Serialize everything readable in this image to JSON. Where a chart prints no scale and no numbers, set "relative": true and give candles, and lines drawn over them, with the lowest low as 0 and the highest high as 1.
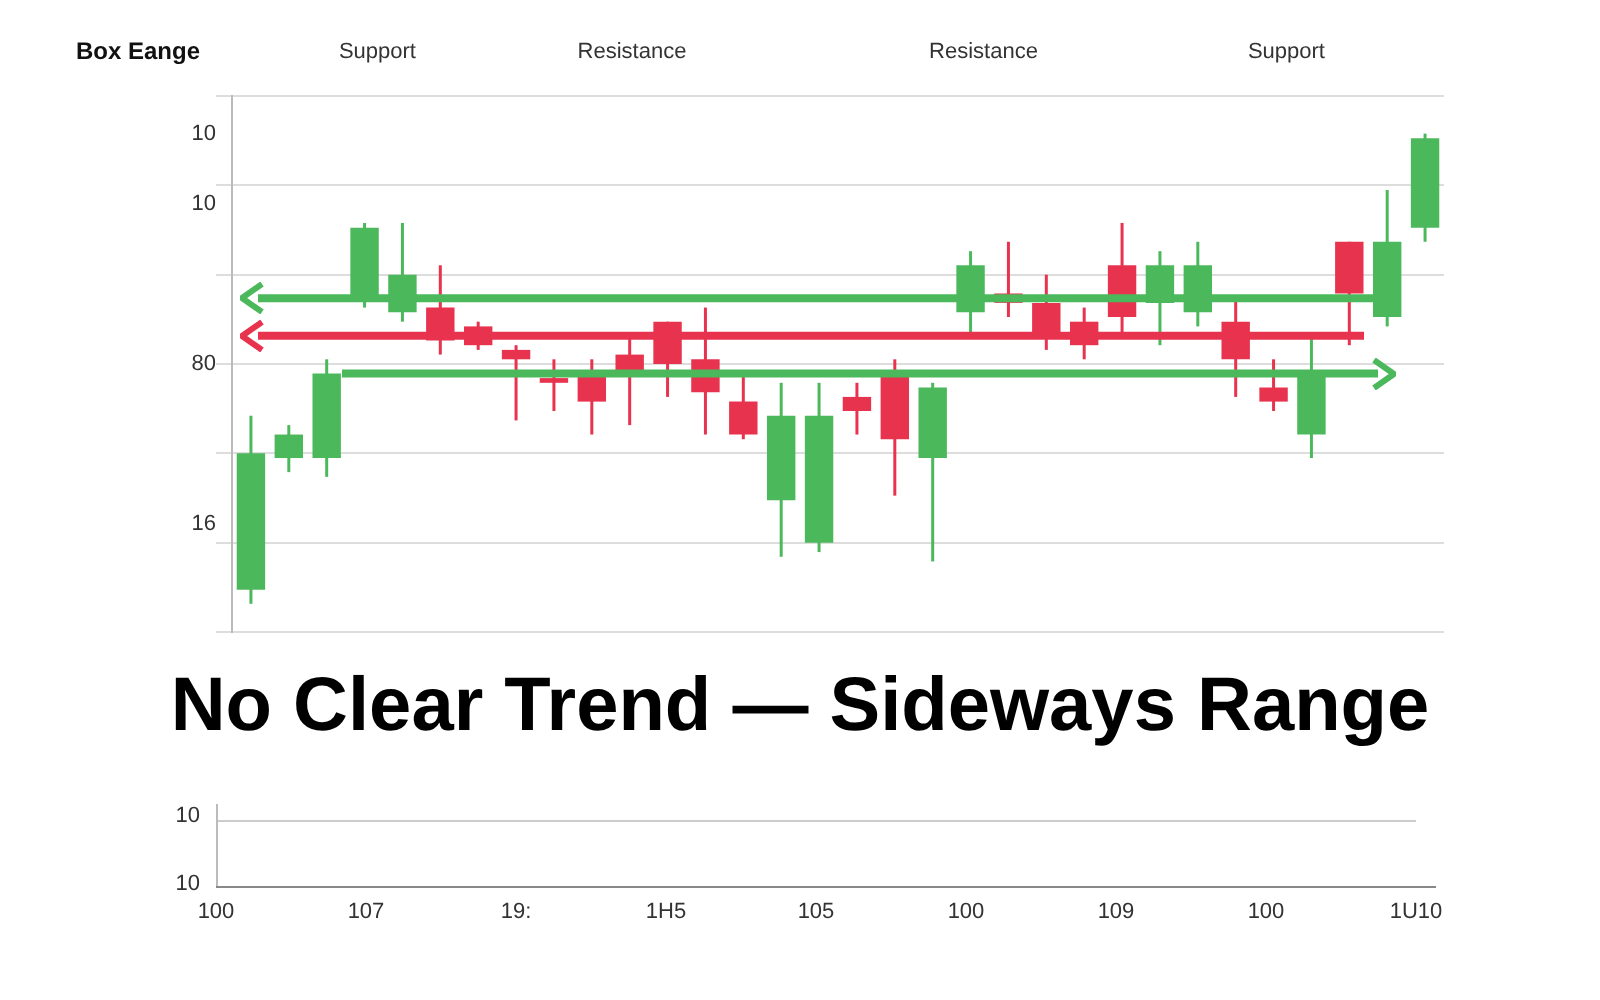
{
  "chart_data": [
    {
      "type": "candlestick",
      "relative": true,
      "ylabel": "Box Eange",
      "grid": "y",
      "colors": [
        "#4cb85c",
        "#4cb85c",
        "#4cb85c",
        "#4cb85c",
        "#4cb85c",
        "#e8334f",
        "#e8334f",
        "#e8334f",
        "#e8334f",
        "#e8334f",
        "#e8334f",
        "#e8334f",
        "#e8334f",
        "#e8334f",
        "#4cb85c",
        "#4cb85c",
        "#e8334f",
        "#e8334f",
        "#4cb85c",
        "#4cb85c",
        "#e8334f",
        "#e8334f",
        "#e8334f",
        "#e8334f",
        "#4cb85c",
        "#4cb85c",
        "#e8334f",
        "#e8334f",
        "#4cb85c",
        "#e8334f",
        "#4cb85c",
        "#4cb85c"
      ],
      "annotations": [
        "Support",
        "Resistance",
        "Resistance",
        "Support",
        "10",
        "10",
        "80",
        "16"
      ],
      "categories": [
        null,
        null,
        null,
        null,
        null,
        null,
        null,
        null,
        null,
        null,
        null,
        null,
        null,
        null,
        null,
        null,
        null,
        null,
        null,
        null,
        null,
        null,
        null,
        null,
        null,
        null,
        null,
        null,
        null,
        null,
        null,
        null
      ],
      "ohlc": [
        [
          0.03,
          0.4,
          0,
          0.32
        ],
        [
          0.31,
          0.38,
          0.28,
          0.36
        ],
        [
          0.31,
          0.52,
          0.27,
          0.49
        ],
        [
          0.65,
          0.81,
          0.63,
          0.8
        ],
        [
          0.62,
          0.81,
          0.6,
          0.7
        ],
        [
          0.63,
          0.72,
          0.53,
          0.56
        ],
        [
          0.59,
          0.6,
          0.54,
          0.55
        ],
        [
          0.54,
          0.55,
          0.39,
          0.52
        ],
        [
          0.48,
          0.52,
          0.41,
          0.47
        ],
        [
          0.49,
          0.52,
          0.36,
          0.43
        ],
        [
          0.53,
          0.57,
          0.38,
          0.49
        ],
        [
          0.6,
          0.6,
          0.44,
          0.51
        ],
        [
          0.52,
          0.63,
          0.36,
          0.45
        ],
        [
          0.43,
          0.49,
          0.35,
          0.36
        ],
        [
          0.22,
          0.47,
          0.1,
          0.4
        ],
        [
          0.13,
          0.47,
          0.11,
          0.4
        ],
        [
          0.44,
          0.47,
          0.36,
          0.41
        ],
        [
          0.49,
          0.52,
          0.23,
          0.35
        ],
        [
          0.31,
          0.47,
          0.09,
          0.46
        ],
        [
          0.62,
          0.75,
          0.57,
          0.72
        ],
        [
          0.66,
          0.77,
          0.61,
          0.64
        ],
        [
          0.64,
          0.7,
          0.54,
          0.57
        ],
        [
          0.6,
          0.63,
          0.52,
          0.55
        ],
        [
          0.72,
          0.81,
          0.57,
          0.61
        ],
        [
          0.64,
          0.75,
          0.55,
          0.72
        ],
        [
          0.62,
          0.77,
          0.59,
          0.72
        ],
        [
          0.6,
          0.65,
          0.44,
          0.52
        ],
        [
          0.46,
          0.52,
          0.41,
          0.43
        ],
        [
          0.36,
          0.57,
          0.31,
          0.49
        ],
        [
          0.77,
          0.77,
          0.55,
          0.66
        ],
        [
          0.61,
          0.88,
          0.59,
          0.77
        ],
        [
          0.8,
          1.0,
          0.77,
          0.99
        ]
      ],
      "ref_lines": [
        {
          "axis": "y",
          "value": 0.65,
          "color": "#4cb85c"
        },
        {
          "axis": "y",
          "value": 0.57,
          "color": "#e8334f"
        },
        {
          "axis": "y",
          "value": 0.49,
          "color": "#4cb85c"
        }
      ]
    },
    {
      "type": "other",
      "title": "No Clear Trend — Sideways Range",
      "annotations": [
        "10",
        "10",
        "100",
        "107",
        "19:",
        "1H5",
        "105",
        "100",
        "109",
        "100",
        "1U10"
      ]
    }
  ]
}
